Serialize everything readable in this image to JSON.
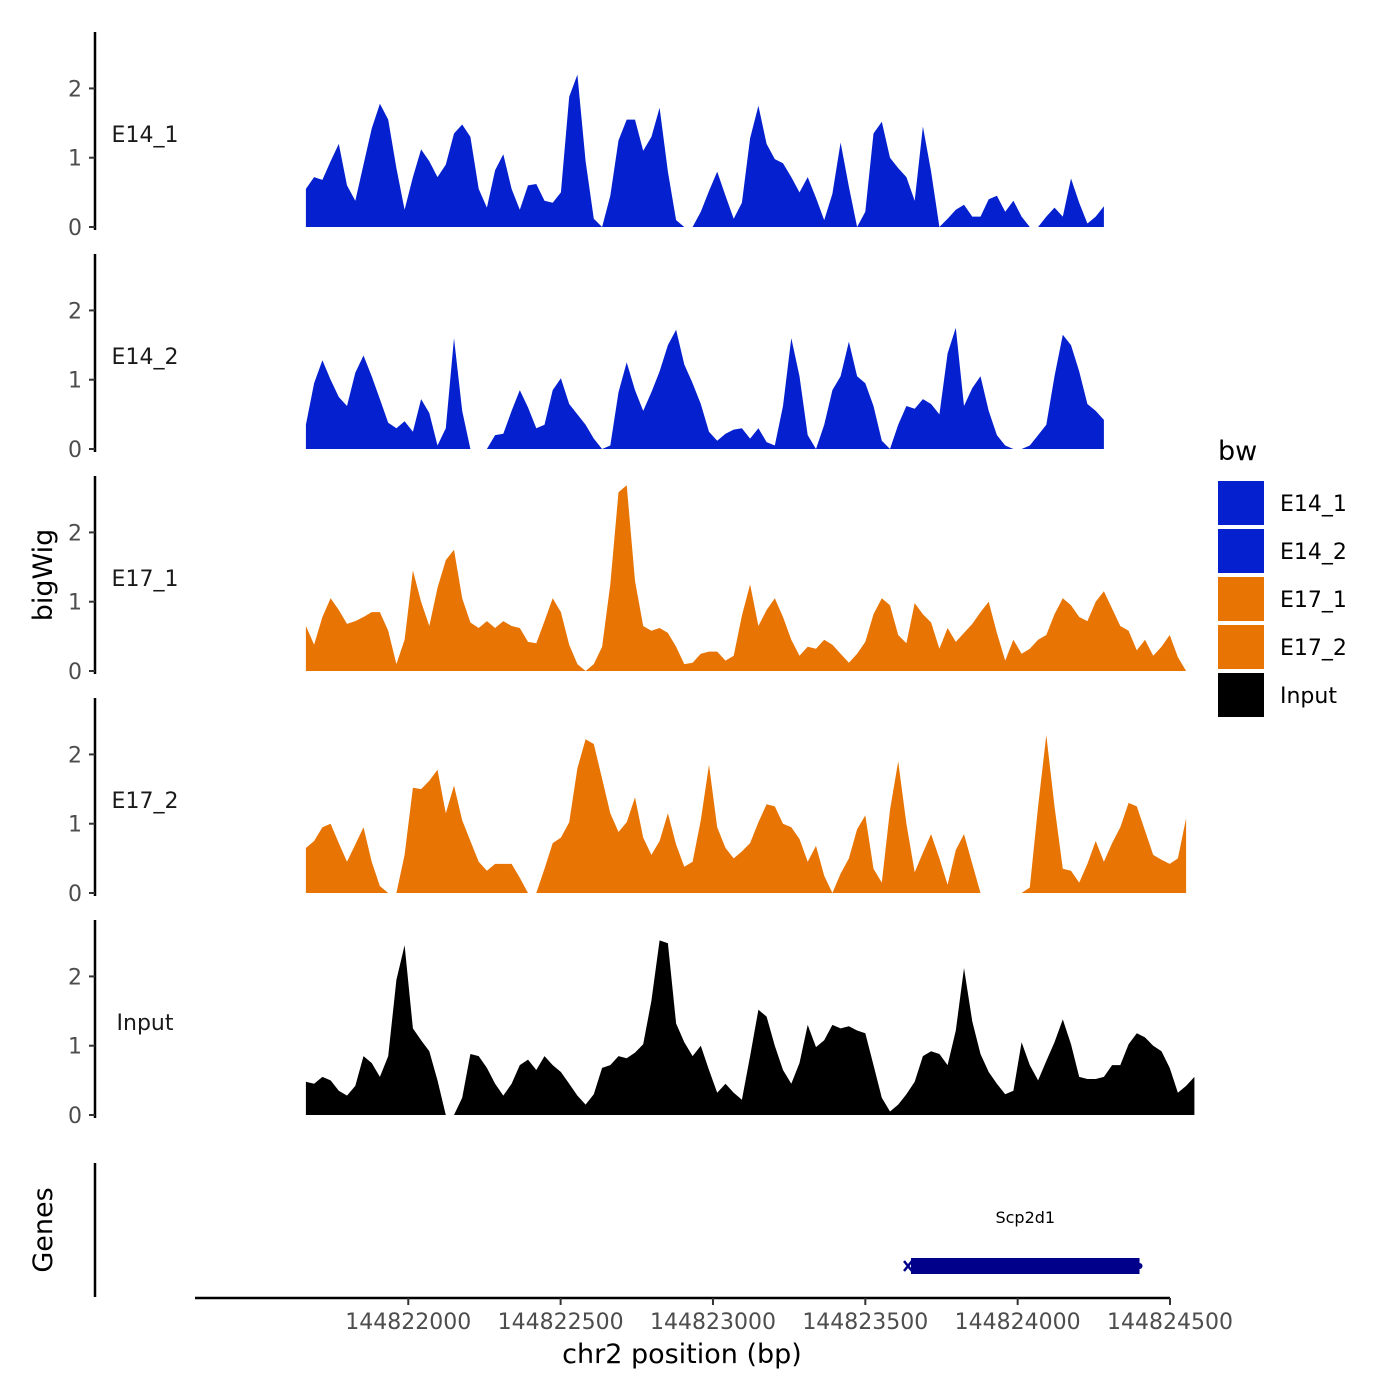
{
  "chart_data": {
    "type": "area",
    "chromosome": "chr2",
    "xlabel": "chr2 position (bp)",
    "ylabel": "bigWig",
    "xlim": [
      144821300,
      144824500
    ],
    "x_ticks": [
      144822000,
      144822500,
      144823000,
      144823500,
      144824000,
      144824500
    ],
    "x_tick_labels": [
      "144822000",
      "144822500",
      "144823000",
      "144823500",
      "144824000",
      "144824500"
    ],
    "ylim": [
      0,
      2.8
    ],
    "y_ticks": [
      0,
      1,
      2
    ],
    "y_tick_labels": [
      "0",
      "1",
      "2"
    ],
    "x_start": 144821664,
    "x_step": 27,
    "legend": {
      "title": "bw",
      "position": "right",
      "entries": [
        {
          "label": "E14_1",
          "color": "#0521CF"
        },
        {
          "label": "E14_2",
          "color": "#0521CF"
        },
        {
          "label": "E17_1",
          "color": "#E87404"
        },
        {
          "label": "E17_2",
          "color": "#E87404"
        },
        {
          "label": "Input",
          "color": "#000000"
        }
      ]
    },
    "series": [
      {
        "name": "E14_1",
        "color": "#0521CF",
        "values": [
          0.55,
          0.72,
          0.68,
          0.95,
          1.2,
          0.6,
          0.38,
          0.9,
          1.42,
          1.78,
          1.55,
          0.85,
          0.25,
          0.72,
          1.12,
          0.95,
          0.72,
          0.9,
          1.35,
          1.48,
          1.3,
          0.55,
          0.28,
          0.82,
          1.05,
          0.55,
          0.25,
          0.6,
          0.62,
          0.38,
          0.35,
          0.5,
          1.88,
          2.2,
          0.95,
          0.12,
          0.0,
          0.45,
          1.25,
          1.55,
          1.55,
          1.1,
          1.3,
          1.72,
          0.8,
          0.1,
          0.0,
          0.0,
          0.22,
          0.52,
          0.8,
          0.45,
          0.12,
          0.35,
          1.28,
          1.75,
          1.2,
          0.98,
          0.92,
          0.72,
          0.5,
          0.72,
          0.42,
          0.1,
          0.48,
          1.22,
          0.58,
          0.0,
          0.22,
          1.35,
          1.52,
          1.0,
          0.85,
          0.72,
          0.38,
          1.45,
          0.8,
          0.0,
          0.12,
          0.25,
          0.32,
          0.15,
          0.15,
          0.4,
          0.45,
          0.22,
          0.38,
          0.15,
          0.0,
          0.0,
          0.15,
          0.28,
          0.15,
          0.7,
          0.35,
          0.05,
          0.15,
          0.3
        ]
      },
      {
        "name": "E14_2",
        "color": "#0521CF",
        "values": [
          0.35,
          0.95,
          1.28,
          1.0,
          0.75,
          0.62,
          1.1,
          1.35,
          1.05,
          0.72,
          0.38,
          0.3,
          0.4,
          0.25,
          0.72,
          0.52,
          0.05,
          0.3,
          1.6,
          0.55,
          0.0,
          0.0,
          0.0,
          0.2,
          0.22,
          0.55,
          0.85,
          0.6,
          0.3,
          0.35,
          0.85,
          1.02,
          0.65,
          0.5,
          0.35,
          0.15,
          0.0,
          0.05,
          0.82,
          1.25,
          0.85,
          0.55,
          0.82,
          1.12,
          1.5,
          1.72,
          1.22,
          0.95,
          0.65,
          0.25,
          0.12,
          0.22,
          0.28,
          0.3,
          0.15,
          0.3,
          0.1,
          0.05,
          0.62,
          1.6,
          1.05,
          0.2,
          0.0,
          0.35,
          0.85,
          1.05,
          1.55,
          1.05,
          0.95,
          0.62,
          0.12,
          0.0,
          0.35,
          0.62,
          0.58,
          0.72,
          0.65,
          0.5,
          1.38,
          1.75,
          0.62,
          0.88,
          1.05,
          0.55,
          0.2,
          0.05,
          0.0,
          0.0,
          0.05,
          0.2,
          0.35,
          1.05,
          1.65,
          1.5,
          1.12,
          0.65,
          0.55,
          0.42
        ]
      },
      {
        "name": "E17_1",
        "color": "#E87404",
        "values": [
          0.65,
          0.38,
          0.78,
          1.05,
          0.88,
          0.68,
          0.72,
          0.78,
          0.85,
          0.85,
          0.58,
          0.1,
          0.45,
          1.45,
          1.0,
          0.65,
          1.2,
          1.6,
          1.75,
          1.05,
          0.7,
          0.62,
          0.72,
          0.62,
          0.72,
          0.65,
          0.62,
          0.42,
          0.4,
          0.72,
          1.05,
          0.85,
          0.38,
          0.1,
          0.0,
          0.1,
          0.35,
          1.25,
          2.58,
          2.68,
          1.3,
          0.65,
          0.58,
          0.62,
          0.55,
          0.35,
          0.1,
          0.12,
          0.25,
          0.28,
          0.28,
          0.15,
          0.22,
          0.8,
          1.25,
          0.65,
          0.88,
          1.05,
          0.78,
          0.45,
          0.22,
          0.35,
          0.32,
          0.45,
          0.38,
          0.25,
          0.12,
          0.25,
          0.42,
          0.82,
          1.05,
          0.95,
          0.52,
          0.4,
          0.98,
          0.82,
          0.7,
          0.32,
          0.62,
          0.42,
          0.55,
          0.68,
          0.85,
          1.0,
          0.55,
          0.15,
          0.45,
          0.25,
          0.32,
          0.45,
          0.52,
          0.82,
          1.05,
          0.95,
          0.78,
          0.72,
          1.0,
          1.15,
          0.9,
          0.65,
          0.58,
          0.3,
          0.45,
          0.22,
          0.35,
          0.52,
          0.2,
          0.0
        ]
      },
      {
        "name": "E17_2",
        "color": "#E87404",
        "values": [
          0.65,
          0.75,
          0.95,
          1.0,
          0.72,
          0.45,
          0.7,
          0.95,
          0.45,
          0.1,
          0.0,
          0.0,
          0.55,
          1.52,
          1.5,
          1.62,
          1.78,
          1.15,
          1.55,
          1.05,
          0.75,
          0.45,
          0.32,
          0.42,
          0.42,
          0.42,
          0.22,
          0.0,
          0.0,
          0.35,
          0.72,
          0.8,
          1.02,
          1.8,
          2.22,
          2.15,
          1.65,
          1.15,
          0.88,
          1.02,
          1.38,
          0.8,
          0.55,
          0.75,
          1.15,
          0.7,
          0.38,
          0.45,
          1.05,
          1.85,
          0.95,
          0.65,
          0.5,
          0.6,
          0.72,
          1.02,
          1.28,
          1.25,
          1.0,
          0.95,
          0.78,
          0.45,
          0.68,
          0.25,
          0.0,
          0.28,
          0.5,
          0.92,
          1.12,
          0.35,
          0.15,
          1.2,
          1.9,
          1.0,
          0.3,
          0.58,
          0.85,
          0.5,
          0.12,
          0.62,
          0.85,
          0.42,
          0.0,
          0.0,
          0.0,
          0.0,
          0.0,
          0.0,
          0.08,
          1.25,
          2.28,
          1.25,
          0.35,
          0.32,
          0.15,
          0.42,
          0.75,
          0.45,
          0.72,
          0.95,
          1.3,
          1.25,
          0.9,
          0.55,
          0.48,
          0.42,
          0.5,
          1.08
        ]
      },
      {
        "name": "Input",
        "color": "#000000",
        "values": [
          0.48,
          0.45,
          0.55,
          0.5,
          0.35,
          0.28,
          0.42,
          0.85,
          0.75,
          0.55,
          0.85,
          1.95,
          2.45,
          1.25,
          1.08,
          0.92,
          0.5,
          0.0,
          0.0,
          0.25,
          0.88,
          0.85,
          0.68,
          0.45,
          0.28,
          0.45,
          0.72,
          0.8,
          0.65,
          0.85,
          0.72,
          0.62,
          0.45,
          0.28,
          0.15,
          0.3,
          0.68,
          0.72,
          0.85,
          0.82,
          0.9,
          1.02,
          1.65,
          2.52,
          2.48,
          1.32,
          1.05,
          0.85,
          1.0,
          0.65,
          0.32,
          0.45,
          0.32,
          0.22,
          0.85,
          1.52,
          1.42,
          1.0,
          0.65,
          0.45,
          0.75,
          1.3,
          0.98,
          1.08,
          1.3,
          1.25,
          1.28,
          1.22,
          1.18,
          0.72,
          0.25,
          0.05,
          0.15,
          0.3,
          0.48,
          0.85,
          0.92,
          0.88,
          0.72,
          1.22,
          2.12,
          1.35,
          0.88,
          0.62,
          0.45,
          0.3,
          0.35,
          1.05,
          0.72,
          0.5,
          0.78,
          1.05,
          1.38,
          1.02,
          0.55,
          0.52,
          0.52,
          0.55,
          0.72,
          0.72,
          1.02,
          1.18,
          1.12,
          1.0,
          0.92,
          0.68,
          0.32,
          0.42,
          0.55
        ]
      }
    ],
    "genes_track": {
      "label": "Genes",
      "genes": [
        {
          "name": "Scp2d1",
          "start": 144823650,
          "end": 144824400,
          "strand": "-",
          "color": "#00008B"
        }
      ]
    }
  }
}
